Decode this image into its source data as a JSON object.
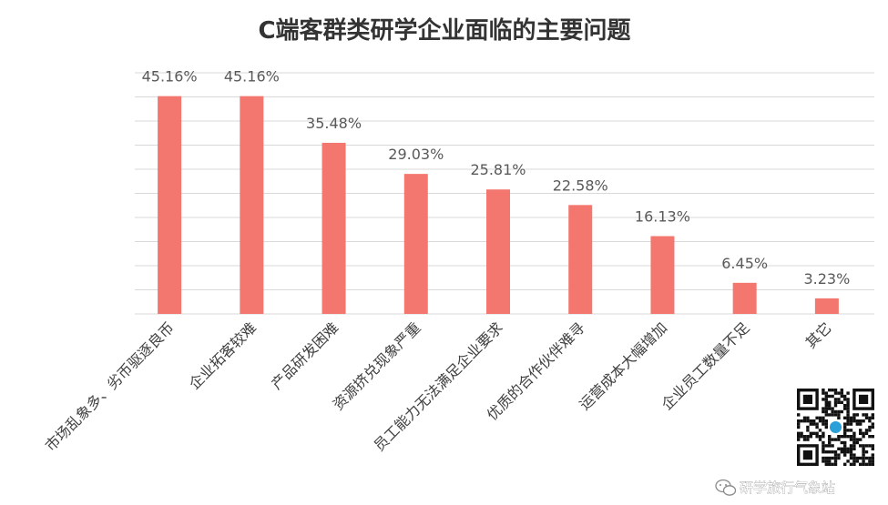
{
  "chart_data": {
    "type": "bar",
    "title": "C端客群类研学企业面临的主要问题",
    "categories": [
      "市场乱象多、劣币驱逐良币",
      "企业拓客较难",
      "产品研发困难",
      "资源挤兑现象严重",
      "员工能力无法满足企业要求",
      "优质的合作伙伴难寻",
      "运营成本大幅增加",
      "企业员工数量不足",
      "其它"
    ],
    "values": [
      45.16,
      45.16,
      35.48,
      29.03,
      25.81,
      22.58,
      16.13,
      6.45,
      3.23
    ],
    "data_labels": [
      "45.16%",
      "45.16%",
      "35.48%",
      "29.03%",
      "25.81%",
      "22.58%",
      "16.13%",
      "6.45%",
      "3.23%"
    ],
    "xlabel": "",
    "ylabel": "",
    "ylim": [
      0,
      50
    ],
    "grid": true,
    "legend": "none",
    "bar_color": "#f4776f"
  },
  "watermark": {
    "text": "研学旅行气象站",
    "icon": "wechat-icon"
  }
}
